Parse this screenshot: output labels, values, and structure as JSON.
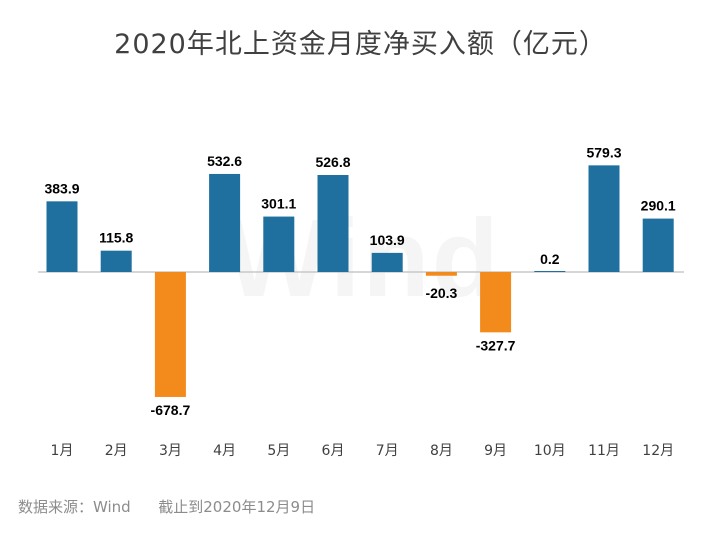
{
  "chart_data": {
    "type": "bar",
    "title": "2020年北上资金月度净买入额（亿元）",
    "categories": [
      "1月",
      "2月",
      "3月",
      "4月",
      "5月",
      "6月",
      "7月",
      "8月",
      "9月",
      "10月",
      "11月",
      "12月"
    ],
    "values": [
      383.9,
      115.8,
      -678.7,
      532.6,
      301.1,
      526.8,
      103.9,
      -20.3,
      -327.7,
      0.2,
      579.3,
      290.1
    ],
    "value_labels": [
      "383.9",
      "115.8",
      "-678.7",
      "532.6",
      "301.1",
      "526.8",
      "103.9",
      "-20.3",
      "-327.7",
      "0.2",
      "579.3",
      "290.1"
    ],
    "ylim": [
      -678.7,
      579.3
    ],
    "xlabel": "",
    "ylabel": "",
    "colors": {
      "positive": "#1f6f9f",
      "negative": "#f28a1c",
      "axis": "#c8c8c8"
    }
  },
  "footer": {
    "source_label": "数据来源：Wind",
    "cutoff_label": "截止到2020年12月9日"
  },
  "watermark": "Wind"
}
